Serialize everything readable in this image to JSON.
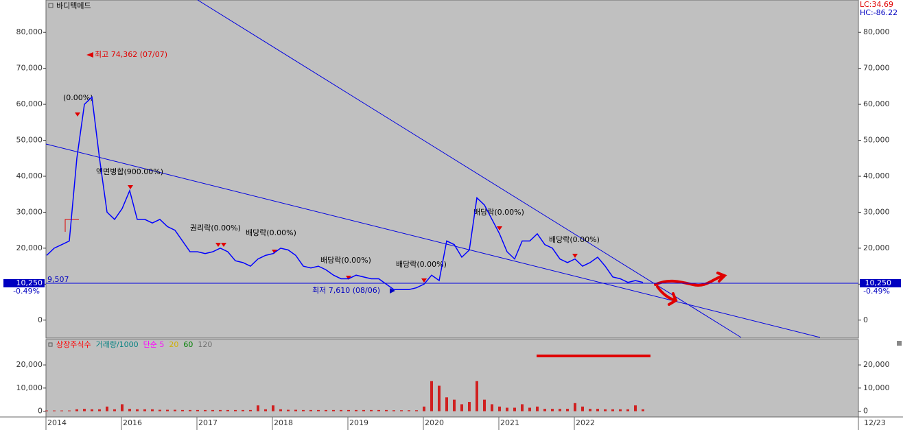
{
  "chart_data": [
    {
      "type": "line",
      "title": "바디텍메드",
      "color": "#0000ff",
      "values": [
        18000,
        20000,
        21000,
        22000,
        45000,
        60000,
        62000,
        45000,
        30000,
        28000,
        31000,
        36000,
        28000,
        28000,
        27000,
        28000,
        26000,
        25000,
        22000,
        19000,
        19000,
        18500,
        19000,
        20000,
        19000,
        16500,
        16000,
        15000,
        17000,
        18000,
        18500,
        20000,
        19500,
        18000,
        15000,
        14500,
        15000,
        14000,
        12500,
        11500,
        11500,
        12500,
        12000,
        11500,
        11500,
        10000,
        8500,
        8500,
        8500,
        9000,
        10000,
        12500,
        11000,
        22000,
        21000,
        17500,
        19500,
        34000,
        32000,
        28000,
        24000,
        19000,
        17000,
        22000,
        22000,
        24000,
        21000,
        20000,
        17000,
        16000,
        17000,
        15000,
        16000,
        17500,
        15000,
        12000,
        11500,
        10500,
        11000,
        10500
      ],
      "ylim": [
        -5000,
        89000
      ],
      "yticks": [
        {
          "value": 0,
          "label": "0"
        },
        {
          "value": 10000,
          "label": "10,000"
        },
        {
          "value": 20000,
          "label": "20,000"
        },
        {
          "value": 30000,
          "label": "30,000"
        },
        {
          "value": 40000,
          "label": "40,000"
        },
        {
          "value": 50000,
          "label": "50,000"
        },
        {
          "value": 60000,
          "label": "60,000"
        },
        {
          "value": 70000,
          "label": "70,000"
        },
        {
          "value": 80000,
          "label": "80,000"
        }
      ],
      "last_price": {
        "value": 10250,
        "label": "10,250"
      },
      "change_label": "-0.49%",
      "lc_label": "LC:34.69",
      "hc_label": "HC:-86.22",
      "annotations": [
        "최고 74,362 (07/07)",
        "최저 7,610 (08/06)",
        "(0.00%)",
        "액면병합(900.00%)",
        "권리락(0.00%)",
        "배당락(0.00%)",
        "배당락(0.00%)",
        "배당락(0.00%)",
        "배당락(0.00%)",
        "배당락(0.00%)",
        "9,507"
      ]
    },
    {
      "type": "bar",
      "color": "#d02020",
      "categories": [
        "2014",
        null,
        null,
        null,
        null,
        null,
        null,
        null,
        null,
        null,
        "2016",
        null,
        null,
        null,
        null,
        null,
        null,
        null,
        null,
        null,
        "2017",
        null,
        null,
        null,
        null,
        null,
        null,
        null,
        null,
        null,
        "2018",
        null,
        null,
        null,
        null,
        null,
        null,
        null,
        null,
        null,
        "2019",
        null,
        null,
        null,
        null,
        null,
        null,
        null,
        null,
        null,
        "2020",
        null,
        null,
        null,
        null,
        null,
        null,
        null,
        null,
        null,
        "2021",
        null,
        null,
        null,
        null,
        null,
        null,
        null,
        null,
        null,
        "2022",
        null,
        null,
        null,
        null,
        null,
        null,
        null,
        null,
        null
      ],
      "values": [
        300,
        300,
        300,
        300,
        800,
        1000,
        800,
        800,
        2000,
        800,
        3000,
        1000,
        800,
        800,
        800,
        600,
        600,
        600,
        500,
        500,
        500,
        500,
        500,
        500,
        500,
        500,
        500,
        500,
        2500,
        800,
        2500,
        800,
        600,
        600,
        500,
        500,
        500,
        500,
        500,
        500,
        500,
        500,
        500,
        500,
        500,
        500,
        400,
        400,
        400,
        400,
        2000,
        13000,
        11000,
        6000,
        5000,
        3000,
        4000,
        13000,
        5000,
        3000,
        2000,
        1500,
        1500,
        3000,
        1500,
        2000,
        1000,
        1000,
        1000,
        1000,
        3500,
        2000,
        1000,
        1000,
        800,
        800,
        800,
        800,
        2500,
        800
      ],
      "ylim": [
        -2500,
        31000
      ],
      "yticks": [
        {
          "value": 0,
          "label": "0"
        },
        {
          "value": 10000,
          "label": "10,000"
        },
        {
          "value": 20000,
          "label": "20,000"
        }
      ],
      "legend": [
        {
          "name": "상장주식수",
          "color": "#ff0000"
        },
        {
          "name": "거래량/1000",
          "color": "#008080"
        },
        {
          "name": "단순 5",
          "color": "#ff00ff"
        },
        {
          "name": "20",
          "color": "#d0b000"
        },
        {
          "name": "60",
          "color": "#008000"
        },
        {
          "name": "120",
          "color": "#707070"
        }
      ],
      "x_end_label": "12/23"
    }
  ]
}
